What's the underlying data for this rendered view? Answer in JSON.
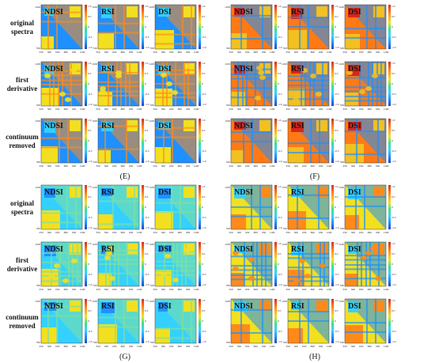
{
  "chart_data": {
    "type": "heatmap",
    "row_labels": [
      [
        "original",
        "spectra"
      ],
      [
        "first",
        "derivative"
      ],
      [
        "continuum",
        "removed"
      ]
    ],
    "index_labels": [
      "NDSI",
      "RSI",
      "DSI"
    ],
    "axis_ticks": [
      "350",
      "500",
      "650",
      "800",
      "950",
      "1100"
    ],
    "colorbar_ticks": [
      "1.0",
      "0.5",
      "0",
      "-0.5",
      "-1.0"
    ],
    "wavelength_range_nm": [
      350,
      1100
    ],
    "correlation_range": [
      -1.0,
      1.0
    ],
    "colormap": [
      "#1f3fbf",
      "#1e90ff",
      "#34d1ff",
      "#34e08a",
      "#f2e020",
      "#ff8a1a",
      "#d6261b"
    ],
    "panel_labels": [
      "(E)",
      "(F)",
      "(G)",
      "(H)"
    ],
    "panels": [
      {
        "label": "(E)",
        "has_row_labels": true,
        "palette": [
          "#1e90ff",
          "#ff8a1a",
          "#f2e020",
          "#34d1ff"
        ]
      },
      {
        "label": "(F)",
        "has_row_labels": false,
        "palette": [
          "#ff7a14",
          "#1e90ff",
          "#f2c020",
          "#d6261b"
        ]
      },
      {
        "label": "(G)",
        "has_row_labels": true,
        "palette": [
          "#34d1ff",
          "#7fe0a0",
          "#f2e020",
          "#1e90ff"
        ]
      },
      {
        "label": "(H)",
        "has_row_labels": false,
        "palette": [
          "#f2e020",
          "#1e90ff",
          "#ff8a1a",
          "#34d1ff"
        ]
      }
    ]
  }
}
